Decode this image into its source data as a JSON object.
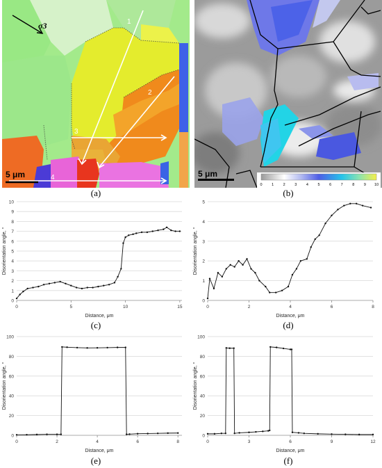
{
  "figure": {
    "panel_labels": [
      "(a)",
      "(b)",
      "(c)",
      "(d)",
      "(e)",
      "(f)"
    ],
    "scale_bar_a": "5 μm",
    "scale_bar_b": "5 μm",
    "stress_symbol": "σ3",
    "profile_numbers": [
      "1",
      "2",
      "3",
      "4"
    ],
    "colorbar_ticks": [
      "0",
      "1",
      "2",
      "3",
      "4",
      "5",
      "6",
      "7",
      "8",
      "9",
      "10"
    ]
  },
  "chart_data": [
    {
      "panel": "(c)",
      "type": "line",
      "xlabel": "Distance, μm",
      "ylabel": "Disorientation angle, °",
      "xlim": [
        0,
        15.2
      ],
      "ylim": [
        0,
        10
      ],
      "xticks": [
        0,
        5,
        10,
        15
      ],
      "yticks": [
        0,
        1,
        2,
        3,
        4,
        5,
        6,
        7,
        8,
        9,
        10
      ],
      "grid": true,
      "series": [
        {
          "x": [
            0,
            0.3,
            0.6,
            1.0,
            1.5,
            2.0,
            2.5,
            3.0,
            3.5,
            4.0,
            4.5,
            5.0,
            5.5,
            6.0,
            6.5,
            7.0,
            7.5,
            8.0,
            8.5,
            9.0,
            9.3,
            9.6,
            9.8,
            10.0,
            10.3,
            10.7,
            11.0,
            11.5,
            12.0,
            12.5,
            13.0,
            13.5,
            13.8,
            14.2,
            14.6,
            15.0
          ],
          "y": [
            0.2,
            0.6,
            0.9,
            1.2,
            1.3,
            1.4,
            1.6,
            1.7,
            1.8,
            1.9,
            1.7,
            1.5,
            1.3,
            1.2,
            1.3,
            1.3,
            1.4,
            1.5,
            1.6,
            1.8,
            2.4,
            3.2,
            5.8,
            6.4,
            6.6,
            6.7,
            6.8,
            6.9,
            6.9,
            7.0,
            7.1,
            7.2,
            7.4,
            7.1,
            7.0,
            7.0
          ]
        }
      ]
    },
    {
      "panel": "(d)",
      "type": "line",
      "xlabel": "Distance, μm",
      "ylabel": "Disorientation angle, °",
      "xlim": [
        0,
        8
      ],
      "ylim": [
        0,
        5
      ],
      "xticks": [
        0,
        2,
        4,
        6,
        8
      ],
      "yticks": [
        0,
        1,
        2,
        3,
        4,
        5
      ],
      "grid": true,
      "series": [
        {
          "x": [
            0,
            0.1,
            0.3,
            0.5,
            0.7,
            0.9,
            1.1,
            1.3,
            1.5,
            1.7,
            1.9,
            2.1,
            2.3,
            2.5,
            2.8,
            3.0,
            3.3,
            3.6,
            3.9,
            4.1,
            4.3,
            4.5,
            4.8,
            5.0,
            5.2,
            5.4,
            5.7,
            6.0,
            6.3,
            6.6,
            6.9,
            7.2,
            7.5,
            7.9
          ],
          "y": [
            0.1,
            1.1,
            0.6,
            1.4,
            1.2,
            1.6,
            1.8,
            1.7,
            2.0,
            1.8,
            2.1,
            1.6,
            1.4,
            1.0,
            0.7,
            0.4,
            0.4,
            0.5,
            0.7,
            1.3,
            1.6,
            2.0,
            2.1,
            2.7,
            3.1,
            3.3,
            3.9,
            4.3,
            4.6,
            4.8,
            4.9,
            4.9,
            4.8,
            4.7
          ]
        }
      ]
    },
    {
      "panel": "(e)",
      "type": "line",
      "xlabel": "Distance, μm",
      "ylabel": "Disorientation angle, °",
      "xlim": [
        0,
        8.2
      ],
      "ylim": [
        0,
        100
      ],
      "xticks": [
        0,
        2,
        4,
        6,
        8
      ],
      "yticks": [
        0,
        20,
        40,
        60,
        80,
        100
      ],
      "grid": true,
      "series": [
        {
          "x": [
            0,
            0.5,
            1.0,
            1.5,
            2.0,
            2.2,
            2.25,
            2.5,
            3.0,
            3.5,
            4.0,
            4.5,
            5.0,
            5.4,
            5.45,
            5.6,
            6.0,
            6.5,
            7.0,
            7.5,
            8.0
          ],
          "y": [
            0.5,
            0.6,
            0.8,
            1.0,
            1.0,
            1.0,
            89.5,
            89.2,
            88.8,
            88.5,
            88.6,
            88.8,
            89.0,
            89.0,
            1.0,
            1.2,
            1.6,
            1.8,
            2.0,
            2.2,
            2.3
          ]
        }
      ]
    },
    {
      "panel": "(f)",
      "type": "line",
      "xlabel": "Distance, μm",
      "ylabel": "Disorientation angle, °",
      "xlim": [
        0,
        12
      ],
      "ylim": [
        0,
        100
      ],
      "xticks": [
        0,
        3,
        6,
        9,
        12
      ],
      "yticks": [
        0,
        20,
        40,
        60,
        80,
        100
      ],
      "grid": true,
      "series": [
        {
          "x": [
            0,
            0.5,
            1.0,
            1.3,
            1.35,
            1.6,
            1.9,
            1.95,
            2.3,
            3.0,
            3.5,
            4.0,
            4.4,
            4.5,
            4.55,
            5.0,
            5.5,
            6.0,
            6.1,
            6.15,
            6.6,
            7.0,
            8.0,
            9.0,
            10.0,
            11.0,
            12.0
          ],
          "y": [
            1.5,
            1.5,
            2.0,
            2.0,
            88.5,
            88.2,
            88.2,
            2.0,
            2.5,
            3.0,
            3.5,
            4.0,
            4.5,
            5.0,
            89.5,
            89.0,
            88.0,
            87.0,
            87.0,
            3.0,
            2.5,
            2.0,
            1.5,
            1.2,
            1.0,
            0.8,
            0.8
          ]
        }
      ]
    }
  ]
}
